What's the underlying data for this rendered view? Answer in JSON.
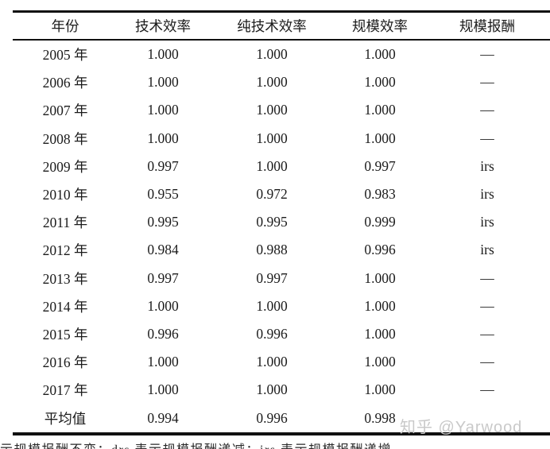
{
  "table": {
    "columns": [
      "年份",
      "技术效率",
      "纯技术效率",
      "规模效率",
      "规模报酬"
    ],
    "rows": [
      [
        "2005 年",
        "1.000",
        "1.000",
        "1.000",
        "—"
      ],
      [
        "2006 年",
        "1.000",
        "1.000",
        "1.000",
        "—"
      ],
      [
        "2007 年",
        "1.000",
        "1.000",
        "1.000",
        "—"
      ],
      [
        "2008 年",
        "1.000",
        "1.000",
        "1.000",
        "—"
      ],
      [
        "2009 年",
        "0.997",
        "1.000",
        "0.997",
        "irs"
      ],
      [
        "2010 年",
        "0.955",
        "0.972",
        "0.983",
        "irs"
      ],
      [
        "2011 年",
        "0.995",
        "0.995",
        "0.999",
        "irs"
      ],
      [
        "2012 年",
        "0.984",
        "0.988",
        "0.996",
        "irs"
      ],
      [
        "2013 年",
        "0.997",
        "0.997",
        "1.000",
        "—"
      ],
      [
        "2014 年",
        "1.000",
        "1.000",
        "1.000",
        "—"
      ],
      [
        "2015 年",
        "0.996",
        "0.996",
        "1.000",
        "—"
      ],
      [
        "2016 年",
        "1.000",
        "1.000",
        "1.000",
        "—"
      ],
      [
        "2017 年",
        "1.000",
        "1.000",
        "1.000",
        "—"
      ],
      [
        "平均值",
        "0.994",
        "0.996",
        "0.998",
        ""
      ]
    ]
  },
  "watermark": "知乎 @Yarwood",
  "footnote": "示规模报酬不变；drs 表示规模报酬递减；irs 表示规模报酬递增",
  "colors": {
    "background": "#ffffff",
    "text": "#1b1b1b",
    "rule_line": "#111111",
    "watermark": "#c9c9c9"
  }
}
